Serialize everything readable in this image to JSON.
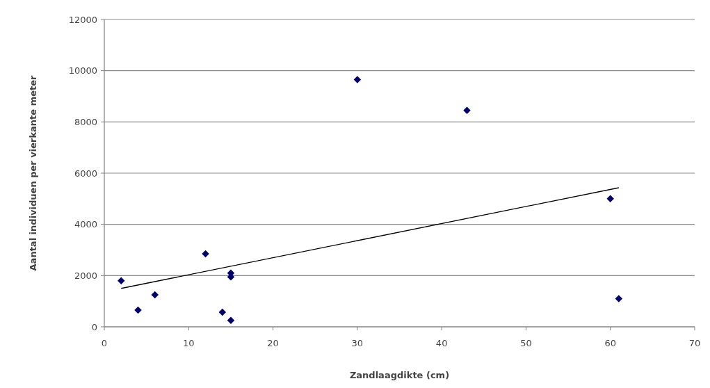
{
  "chart_data": {
    "type": "scatter",
    "xlabel": "Zandlaagdikte (cm)",
    "ylabel": "Aantal individuen per vierkante meter",
    "xlim": [
      0,
      70
    ],
    "xticks": [
      0,
      10,
      20,
      30,
      40,
      50,
      60,
      70
    ],
    "ylim": [
      0,
      12000
    ],
    "yticks": [
      0,
      2000,
      4000,
      6000,
      8000,
      10000,
      12000
    ],
    "grid": "y",
    "series": [
      {
        "marker": "diamond",
        "color": "#000066",
        "x": [
          2,
          4,
          6,
          12,
          14,
          15,
          15,
          15,
          30,
          43,
          60,
          61
        ],
        "values": [
          1800,
          650,
          1250,
          2850,
          570,
          250,
          2100,
          1950,
          9650,
          8450,
          5000,
          1100
        ]
      },
      {
        "type": "line",
        "color": "#000000",
        "x": [
          2,
          61
        ],
        "values": [
          1500,
          5430
        ]
      }
    ]
  }
}
